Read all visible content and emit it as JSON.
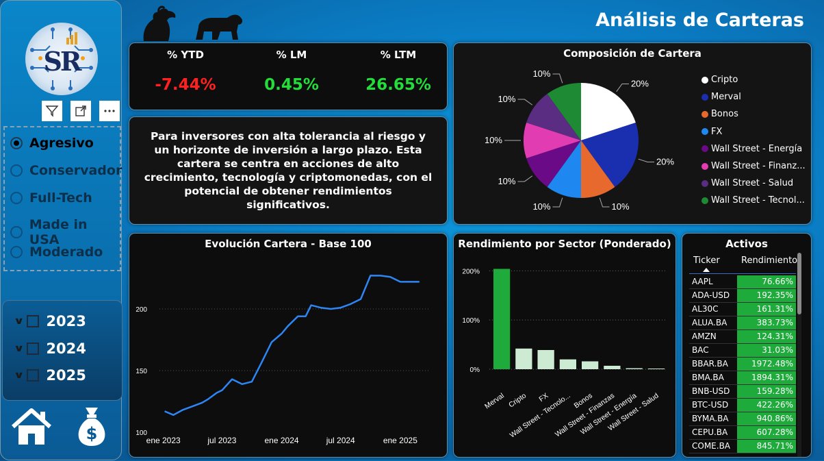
{
  "header": {
    "title": "Análisis de Carteras"
  },
  "sidebar": {
    "logo_text": "SR",
    "portfolio_options": [
      {
        "label": "Agresivo",
        "selected": true
      },
      {
        "label": "Conservador",
        "selected": false
      },
      {
        "label": "Full-Tech",
        "selected": false
      },
      {
        "label": "Made in USA",
        "selected": false
      },
      {
        "label": "Moderado",
        "selected": false
      }
    ],
    "years": [
      "2023",
      "2024",
      "2025"
    ],
    "visual_tools": [
      "filter-icon",
      "focus-mode-icon",
      "more-options-icon"
    ],
    "nav_icons": [
      "home-icon",
      "money-bag-icon"
    ]
  },
  "header_icons": [
    "bull-icon",
    "bear-icon"
  ],
  "kpis": [
    {
      "label": "% YTD",
      "value": "-7.44%",
      "color": "#ff2020"
    },
    {
      "label": "% LM",
      "value": "0.45%",
      "color": "#22dd3a"
    },
    {
      "label": "% LTM",
      "value": "26.65%",
      "color": "#22dd3a"
    }
  ],
  "description": "Para inversores con alta tolerancia al riesgo y un horizonte de inversión a largo plazo. Esta cartera se centra en acciones de alto crecimiento, tecnología y criptomonedas, con el potencial de obtener rendimientos significativos.",
  "composition": {
    "title": "Composición de Cartera",
    "legend_overflow": [
      "Wall Street - Finanz...",
      "Wall Street - Tecnol..."
    ]
  },
  "evolution": {
    "title": "Evolución Cartera - Base 100"
  },
  "sector": {
    "title": "Rendimiento por Sector (Ponderado)"
  },
  "assets": {
    "title": "Activos",
    "col_ticker": "Ticker",
    "col_return": "Rendimiento",
    "rows": [
      {
        "ticker": "AAPL",
        "ret": "76.66%"
      },
      {
        "ticker": "ADA-USD",
        "ret": "192.35%"
      },
      {
        "ticker": "AL30C",
        "ret": "161.31%"
      },
      {
        "ticker": "ALUA.BA",
        "ret": "383.73%"
      },
      {
        "ticker": "AMZN",
        "ret": "124.31%"
      },
      {
        "ticker": "BAC",
        "ret": "31.03%"
      },
      {
        "ticker": "BBAR.BA",
        "ret": "1972.48%"
      },
      {
        "ticker": "BMA.BA",
        "ret": "1894.31%"
      },
      {
        "ticker": "BNB-USD",
        "ret": "159.28%"
      },
      {
        "ticker": "BTC-USD",
        "ret": "422.26%"
      },
      {
        "ticker": "BYMA.BA",
        "ret": "940.86%"
      },
      {
        "ticker": "CEPU.BA",
        "ret": "607.28%"
      },
      {
        "ticker": "COME.BA",
        "ret": "845.71%"
      }
    ],
    "row_color": "#1faa3c"
  },
  "chart_data": [
    {
      "type": "pie",
      "title": "Composición de Cartera",
      "categories": [
        "Cripto",
        "Merval",
        "Bonos",
        "FX",
        "Wall Street - Energía",
        "Wall Street - Finanzas",
        "Wall Street - Salud",
        "Wall Street - Tecnología"
      ],
      "values": [
        20,
        20,
        10,
        10,
        10,
        10,
        10,
        10
      ],
      "labels": [
        "20%",
        "20%",
        "10%",
        "10%",
        "10%",
        "10%",
        "10%",
        "10%"
      ],
      "colors": [
        "#ffffff",
        "#1a2eb0",
        "#e8692e",
        "#1e88f0",
        "#6a0a86",
        "#e23cb2",
        "#5a2d82",
        "#1e8a34"
      ],
      "legend": "right"
    },
    {
      "type": "line",
      "title": "Evolución Cartera - Base 100",
      "x": [
        "2023-01-05",
        "2023-02-01",
        "2023-03-01",
        "2023-04-01",
        "2023-05-01",
        "2023-05-20",
        "2023-06-15",
        "2023-07-01",
        "2023-08-01",
        "2023-09-01",
        "2023-10-01",
        "2023-11-01",
        "2023-12-01",
        "2024-01-01",
        "2024-01-20",
        "2024-02-20",
        "2024-03-15",
        "2024-04-01",
        "2024-05-01",
        "2024-06-01",
        "2024-07-01",
        "2024-08-01",
        "2024-09-01",
        "2024-10-01",
        "2024-11-01",
        "2024-12-01",
        "2025-01-01",
        "2025-02-01",
        "2025-03-01"
      ],
      "y": [
        117,
        114,
        118,
        121,
        124,
        127,
        132,
        134,
        143,
        139,
        141,
        157,
        173,
        180,
        186,
        194,
        194,
        203,
        201,
        200,
        201,
        204,
        208,
        227,
        227,
        226,
        222,
        222,
        222
      ],
      "xticks": [
        "ene 2023",
        "jul 2023",
        "ene 2024",
        "jul 2024",
        "ene 2025"
      ],
      "yticks": [
        100,
        150,
        200
      ],
      "ylim": [
        100,
        250
      ],
      "color": "#2e86f5",
      "grid": true
    },
    {
      "type": "bar",
      "title": "Rendimiento por Sector (Ponderado)",
      "categories": [
        "Merval",
        "Cripto",
        "FX",
        "Wall Street - Tecnolo...",
        "Bonos",
        "Wall Street - Finanzas",
        "Wall Street - Energía",
        "Wall Street - Salud"
      ],
      "values": [
        2.04,
        0.42,
        0.39,
        0.2,
        0.16,
        0.07,
        0.02,
        0.01
      ],
      "yticks": [
        "0%",
        "100%",
        "200%"
      ],
      "ylim": [
        0,
        2.2
      ],
      "highlight": 0,
      "colors": [
        "#1faa3c",
        "#cdebd3"
      ],
      "grid": true
    }
  ]
}
